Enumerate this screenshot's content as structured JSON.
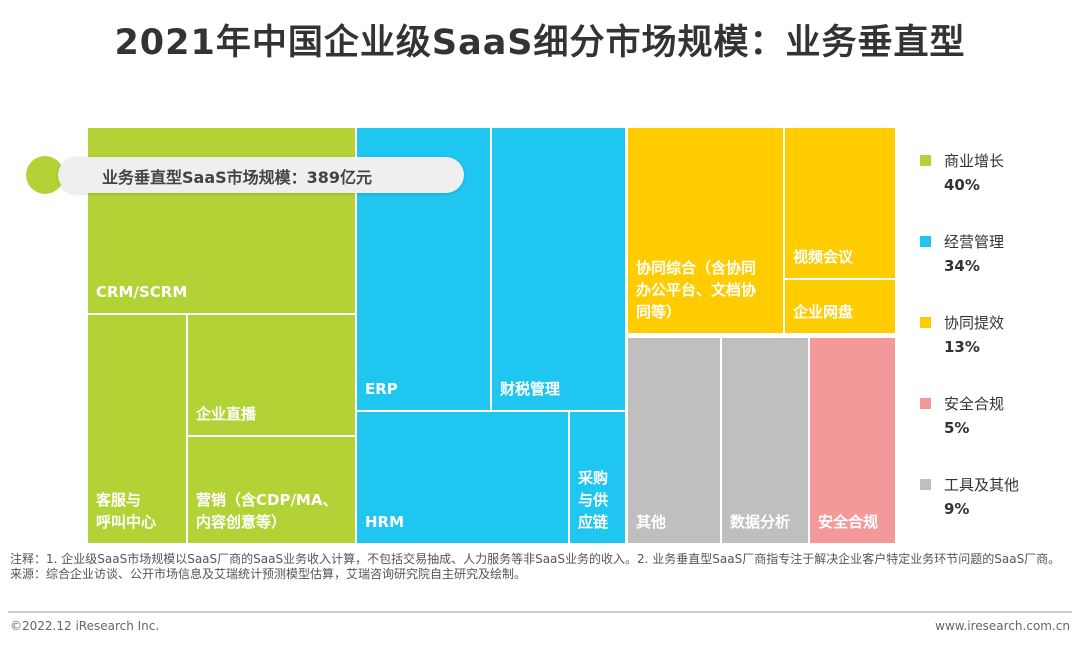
{
  "title": "2021年中国企业级SaaS细分市场规模：业务垂直型",
  "chart_data": {
    "type": "treemap",
    "title": "2021年中国企业级SaaS细分市场规模：业务垂直型",
    "total_label": "业务垂直型SaaS市场规模：389亿元",
    "groups": [
      {
        "name": "商业增长",
        "share_pct": 40,
        "color": "#B2D235",
        "cells": [
          "CRM/SCRM",
          "客服与\n呼叫中心",
          "企业直播",
          "营销（含CDP/MA、\n内容创意等）"
        ]
      },
      {
        "name": "经营管理",
        "share_pct": 34,
        "color": "#1EC6F0",
        "cells": [
          "ERP",
          "财税管理",
          "HRM",
          "采购\n与供\n应链"
        ]
      },
      {
        "name": "协同提效",
        "share_pct": 13,
        "color": "#FFCC00",
        "cells": [
          "协同综合（含协同\n办公平台、文档协\n同等）",
          "视频会议",
          "企业网盘"
        ]
      },
      {
        "name": "安全合规",
        "share_pct": 5,
        "color": "#F4999A",
        "cells": [
          "安全合规"
        ]
      },
      {
        "name": "工具及其他",
        "share_pct": 9,
        "color": "#BFBFBF",
        "cells": [
          "其他",
          "数据分析"
        ]
      }
    ],
    "legend": [
      {
        "name": "商业增长",
        "pct": "40%",
        "color": "#B2D235"
      },
      {
        "name": "经营管理",
        "pct": "34%",
        "color": "#1EC6F0"
      },
      {
        "name": "协同提效",
        "pct": "13%",
        "color": "#FFCC00"
      },
      {
        "name": "安全合规",
        "pct": "5%",
        "color": "#F4999A"
      },
      {
        "name": "工具及其他",
        "pct": "9%",
        "color": "#BFBFBF"
      }
    ],
    "legend_placement": "right"
  },
  "notes": {
    "note": "注释：1. 企业级SaaS市场规模以SaaS厂商的SaaS业务收入计算，不包括交易抽成、人力服务等非SaaS业务的收入。2. 业务垂直型SaaS厂商指专注于解决企业客户特定业务环节问题的SaaS厂商。",
    "source": "来源：综合企业访谈、公开市场信息及艾瑞统计预测模型估算，艾瑞咨询研究院自主研究及绘制。"
  },
  "footer": {
    "copyright": "©2022.12 iResearch Inc.",
    "url": "www.iresearch.com.cn"
  }
}
